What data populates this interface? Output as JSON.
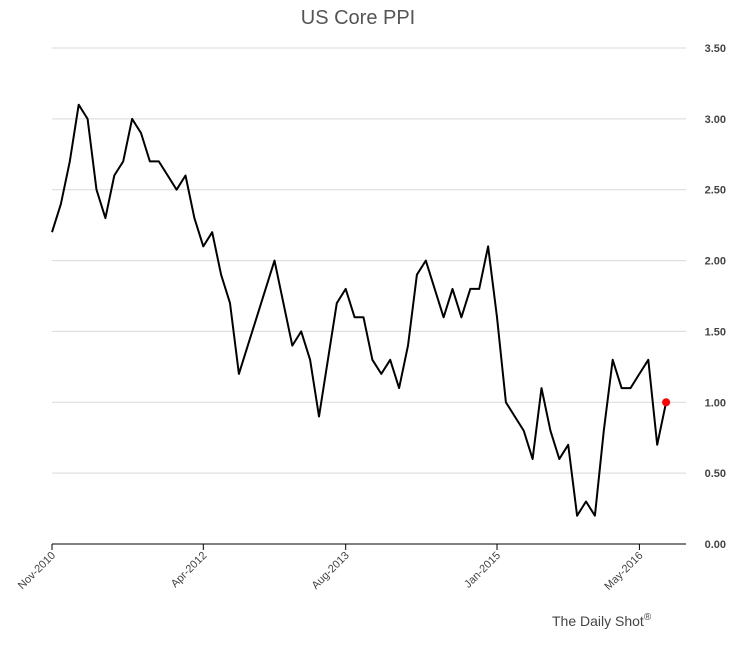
{
  "chart_data": {
    "type": "line",
    "title": "US Core PPI",
    "xlabel": "",
    "ylabel": "",
    "ylim": [
      0,
      3.5
    ],
    "yticks": [
      "0.00",
      "0.50",
      "1.00",
      "1.50",
      "2.00",
      "2.50",
      "3.00",
      "3.50"
    ],
    "ytick_values": [
      0,
      0.5,
      1.0,
      1.5,
      2.0,
      2.5,
      3.0,
      3.5
    ],
    "xticks": [
      "Nov-2010",
      "Apr-2012",
      "Aug-2013",
      "Jan-2015",
      "May-2016"
    ],
    "xtick_months": [
      "2010-11",
      "2012-04",
      "2013-08",
      "2015-01",
      "2016-05"
    ],
    "y_axis_position": "right",
    "grid": true,
    "legend": "none",
    "series": [
      {
        "x": [
          "2010-11",
          "2010-12",
          "2011-01",
          "2011-02",
          "2011-03",
          "2011-04",
          "2011-05",
          "2011-06",
          "2011-07",
          "2011-08",
          "2011-09",
          "2011-10",
          "2011-11",
          "2011-12",
          "2012-01",
          "2012-02",
          "2012-03",
          "2012-04",
          "2012-05",
          "2012-06",
          "2012-07",
          "2012-08",
          "2012-09",
          "2012-10",
          "2012-11",
          "2012-12",
          "2013-01",
          "2013-02",
          "2013-03",
          "2013-04",
          "2013-05",
          "2013-06",
          "2013-07",
          "2013-08",
          "2013-09",
          "2013-10",
          "2013-11",
          "2013-12",
          "2014-01",
          "2014-02",
          "2014-03",
          "2014-04",
          "2014-05",
          "2014-06",
          "2014-07",
          "2014-08",
          "2014-09",
          "2014-10",
          "2014-11",
          "2014-12",
          "2015-01",
          "2015-02",
          "2015-03",
          "2015-04",
          "2015-05",
          "2015-06",
          "2015-07",
          "2015-08",
          "2015-09",
          "2015-10",
          "2015-11",
          "2015-12",
          "2016-01",
          "2016-02",
          "2016-03",
          "2016-04",
          "2016-05",
          "2016-06",
          "2016-07",
          "2016-08"
        ],
        "values": [
          2.2,
          2.4,
          2.7,
          3.1,
          3.0,
          2.5,
          2.3,
          2.6,
          2.7,
          3.0,
          2.9,
          2.7,
          2.7,
          2.6,
          2.5,
          2.6,
          2.3,
          2.1,
          2.2,
          1.9,
          1.7,
          1.2,
          1.4,
          1.6,
          1.8,
          2.0,
          1.7,
          1.4,
          1.5,
          1.3,
          0.9,
          1.3,
          1.7,
          1.8,
          1.6,
          1.6,
          1.3,
          1.2,
          1.3,
          1.1,
          1.4,
          1.9,
          2.0,
          1.8,
          1.6,
          1.8,
          1.6,
          1.8,
          1.8,
          2.1,
          1.6,
          1.0,
          0.9,
          0.8,
          0.6,
          1.1,
          0.8,
          0.6,
          0.7,
          0.2,
          0.3,
          0.2,
          0.8,
          1.3,
          1.1,
          1.1,
          1.2,
          1.3,
          0.7,
          1.0
        ],
        "color": "#000000"
      }
    ],
    "highlight_point": {
      "x": "2016-08",
      "value": 1.0,
      "color": "#ff0000"
    },
    "source": "The Daily Shot",
    "source_mark": "®"
  }
}
